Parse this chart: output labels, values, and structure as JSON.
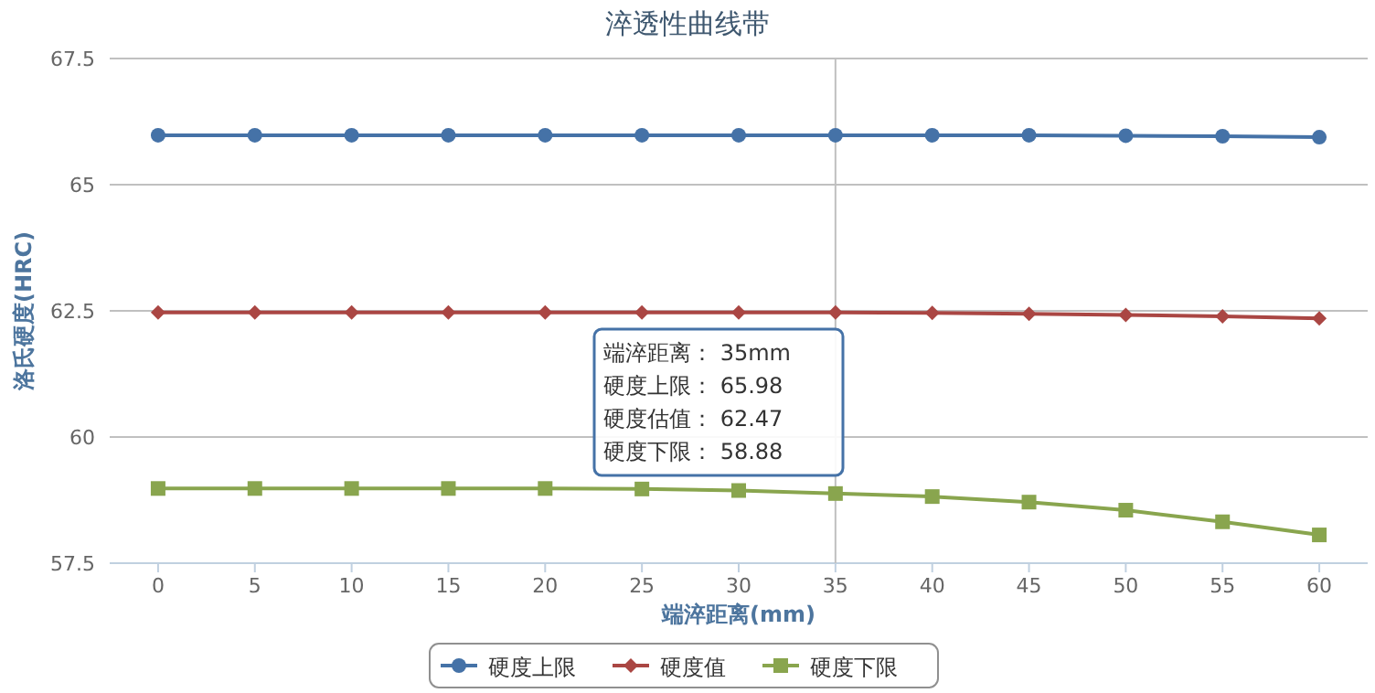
{
  "chart_data": {
    "type": "line",
    "title": "淬透性曲线带",
    "xlabel": "端淬距离(mm)",
    "ylabel": "洛氏硬度(HRC)",
    "x": [
      0,
      5,
      10,
      15,
      20,
      25,
      30,
      35,
      40,
      45,
      50,
      55,
      60
    ],
    "xlim": [
      -2.5,
      62.5
    ],
    "xticks": [
      0,
      5,
      10,
      15,
      20,
      25,
      30,
      35,
      40,
      45,
      50,
      55,
      60
    ],
    "ylim": [
      57.5,
      67.5
    ],
    "yticks": [
      57.5,
      60,
      62.5,
      65,
      67.5
    ],
    "grid": "y",
    "legend": "bottom",
    "series": [
      {
        "name": "硬度上限",
        "color": "#4572a7",
        "marker": "circle",
        "values": [
          65.98,
          65.98,
          65.98,
          65.98,
          65.98,
          65.98,
          65.98,
          65.98,
          65.98,
          65.98,
          65.97,
          65.96,
          65.94
        ]
      },
      {
        "name": "硬度值",
        "color": "#aa4643",
        "marker": "diamond",
        "values": [
          62.47,
          62.47,
          62.47,
          62.47,
          62.47,
          62.47,
          62.47,
          62.47,
          62.46,
          62.44,
          62.42,
          62.39,
          62.35
        ]
      },
      {
        "name": "硬度下限",
        "color": "#89a54e",
        "marker": "square",
        "values": [
          58.98,
          58.98,
          58.98,
          58.98,
          58.98,
          58.97,
          58.94,
          58.88,
          58.82,
          58.71,
          58.55,
          58.32,
          58.06
        ]
      }
    ],
    "ref_lines": [
      {
        "axis": "x",
        "value": 35,
        "color": "#c0c0c0"
      }
    ],
    "annotations": [
      "端淬距离： 35mm",
      "硬度上限： 65.98",
      "硬度估值： 62.47",
      "硬度下限： 58.88"
    ]
  }
}
